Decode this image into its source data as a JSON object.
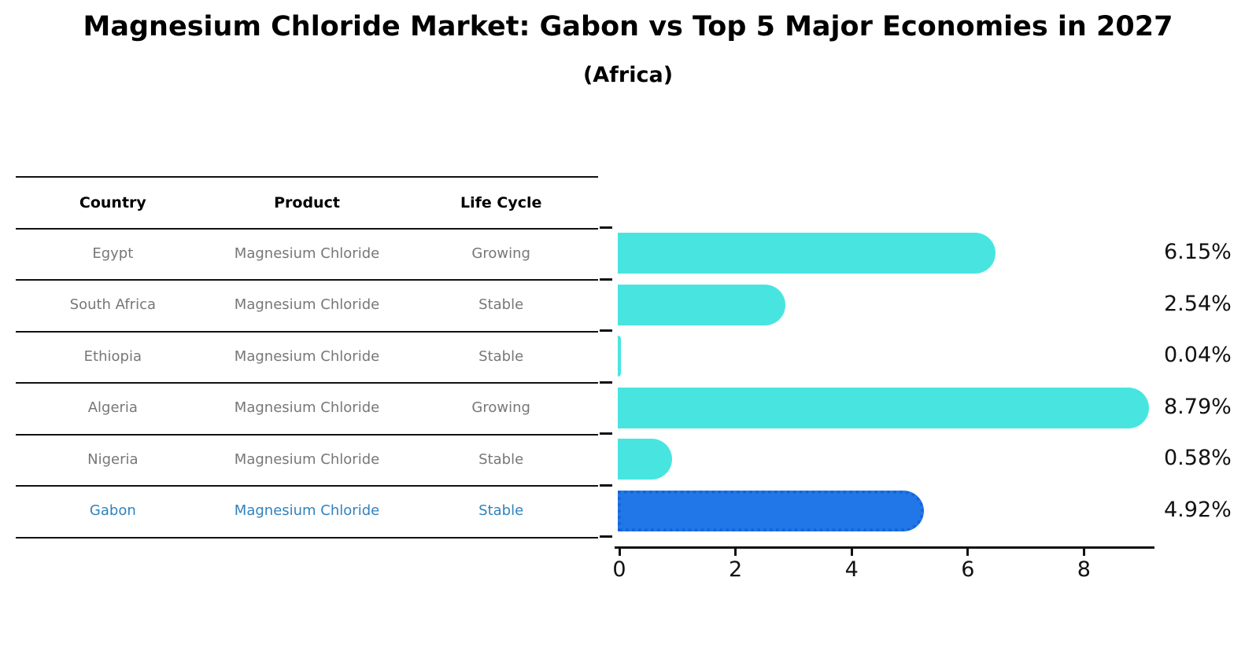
{
  "title": "Magnesium Chloride Market: Gabon vs Top 5 Major Economies in 2027",
  "subtitle": "(Africa)",
  "table": {
    "headers": [
      "Country",
      "Product",
      "Life Cycle"
    ],
    "rows": [
      {
        "country": "Egypt",
        "product": "Magnesium Chloride",
        "life_cycle": "Growing",
        "highlight": false
      },
      {
        "country": "South Africa",
        "product": "Magnesium Chloride",
        "life_cycle": "Stable",
        "highlight": false
      },
      {
        "country": "Ethiopia",
        "product": "Magnesium Chloride",
        "life_cycle": "Stable",
        "highlight": false
      },
      {
        "country": "Algeria",
        "product": "Magnesium Chloride",
        "life_cycle": "Growing",
        "highlight": false
      },
      {
        "country": "Nigeria",
        "product": "Magnesium Chloride",
        "life_cycle": "Stable",
        "highlight": false
      },
      {
        "country": "Gabon",
        "product": "Magnesium Chloride",
        "life_cycle": "Stable",
        "highlight": true
      }
    ]
  },
  "chart_data": {
    "type": "bar",
    "orientation": "horizontal",
    "categories": [
      "Egypt",
      "South Africa",
      "Ethiopia",
      "Algeria",
      "Nigeria",
      "Gabon"
    ],
    "values": [
      6.15,
      2.54,
      0.04,
      8.79,
      0.58,
      4.92
    ],
    "value_labels": [
      "6.15%",
      "2.54%",
      "0.04%",
      "8.79%",
      "0.58%",
      "4.92%"
    ],
    "highlight_index": 5,
    "xlim": [
      0,
      9.2
    ],
    "xticks": [
      0,
      2,
      4,
      6,
      8
    ],
    "grid": false,
    "legend": "none",
    "bar_color": "#48E5E0",
    "highlight_bar_color": "#2277E8",
    "highlight_bar_border_color": "#1565D8"
  },
  "colors": {
    "row_text": "#777777",
    "highlight_text": "#3182BD",
    "header_text": "#000000",
    "axis_text": "#111111"
  }
}
